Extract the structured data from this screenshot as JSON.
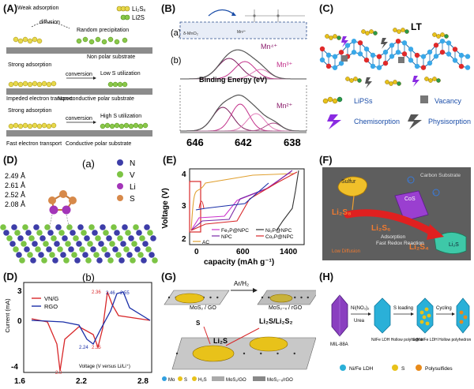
{
  "figure": {
    "panels": [
      {
        "id": "A",
        "label": "(A)"
      },
      {
        "id": "B",
        "label": "(B)"
      },
      {
        "id": "C",
        "label": "(C)"
      },
      {
        "id": "D1",
        "label": "(D)"
      },
      {
        "id": "E",
        "label": "(E)"
      },
      {
        "id": "F",
        "label": "(F)"
      },
      {
        "id": "D2",
        "label": "(D)"
      },
      {
        "id": "G",
        "label": "(G)"
      },
      {
        "id": "H",
        "label": "(H)"
      }
    ]
  },
  "panel_a": {
    "legend_li2sx": "Li₂Sₓ",
    "legend_li2s": "Li2S",
    "row1": {
      "weak": "Weak adsorption",
      "diffusion": "diffusion",
      "random": "Random precipitation",
      "substrate": "Non polar substrate"
    },
    "row2": {
      "strong": "Strong adsorption",
      "conversion": "conversion",
      "low": "Low S utilization",
      "impeded": "Impeded electron transport",
      "substrate": "Non-conductive polar substrate"
    },
    "row3": {
      "strong": "Strong adsorption",
      "conversion": "conversion",
      "high": "High S utilization",
      "fast": "Fast electron transport",
      "substrate": "Conductive polar substrate"
    }
  },
  "panel_b": {
    "sub_a": "(a)",
    "sub_b": "(b)",
    "box_label": "δ-MnO₂",
    "mn_label": "Mn²⁺",
    "mn4": "Mn⁴⁺",
    "mn3": "Mn³⁺",
    "mn2": "Mn²⁺",
    "xlabel": "Binding Energy (eV)",
    "ticks": [
      "646",
      "642",
      "638"
    ]
  },
  "panel_c": {
    "title": "LT",
    "legend": {
      "lipss": "LiPSs",
      "vacancy": "Vacancy",
      "chem": "Chemisorption",
      "phys": "Physisorption"
    }
  },
  "panel_d1": {
    "sub": "(a)",
    "distances": [
      "2.49 Å",
      "2.61 Å",
      "2.52 Å",
      "2.08 Å"
    ],
    "legend": [
      "N",
      "V",
      "Li",
      "S"
    ]
  },
  "panel_e": {
    "ylabel": "Voltage (V)",
    "xlabel": "capacity (mAh g⁻¹)",
    "yticks": [
      "4",
      "3",
      "2"
    ],
    "xticks": [
      "0",
      "600",
      "1400"
    ],
    "legend": [
      "Fe₃P@NPC",
      "NPC",
      "AC",
      "Ni₂P@NPC",
      "Co₂P@NPC"
    ]
  },
  "panel_f": {
    "carbon": "Carbon Substrate",
    "sulfur": "Sulfur",
    "cos": "CoS",
    "li2s8": "Li₂S₈",
    "li2s6": "Li₂S₆",
    "li2s4": "Li₂S₄",
    "li2s": "Li₂S",
    "adsorption": "Adsorption",
    "fast": "Fast Redox Reaction",
    "low": "Low Diffusion",
    "e": "e⁻"
  },
  "panel_d2": {
    "sub": "(b)",
    "ylabel": "Current (mA)",
    "xlabel": "Voltage (V versus Li/Li⁺)",
    "yticks": [
      "3",
      "0",
      "-4"
    ],
    "xticks": [
      "1.6",
      "2.2",
      "2.8"
    ],
    "legend": [
      "VN/G",
      "RGO"
    ],
    "peaks": [
      "2.36",
      "2.46",
      "2.55",
      "2.24",
      "2.35",
      "2.0"
    ]
  },
  "panel_g": {
    "arh2": "Ar/H₂",
    "mos2go": "MoS₂ / GO",
    "mos2xrgo": "MoS₂₋ₓ / rGO",
    "s": "S",
    "li2s": "Li₂S",
    "li2sli2s2": "Li₂S/Li₂S₂",
    "legend": [
      "Mo",
      "S",
      "H₂S",
      "MoS₂/GO",
      "MoS₂₋ₓ/rGO"
    ]
  },
  "panel_h": {
    "mil": "MIL-88A",
    "nino3": "Ni(NO₃)₂",
    "urea": "Urea",
    "sloading": "S loading",
    "cycling": "Cycling",
    "hollow1": "Ni/Fe LDH Hollow polyhedron",
    "hollow2": "S@Ni/Fe LDH Hollow polyhedron",
    "legend": [
      "Ni/Fe LDH",
      "S",
      "Polysulfides"
    ]
  },
  "colors": {
    "red": "#d8282a",
    "blue": "#1a2fa8",
    "purple": "#8a2be2",
    "yellow": "#e8c21a",
    "green": "#6cbf3c",
    "orange": "#e27b1c"
  }
}
